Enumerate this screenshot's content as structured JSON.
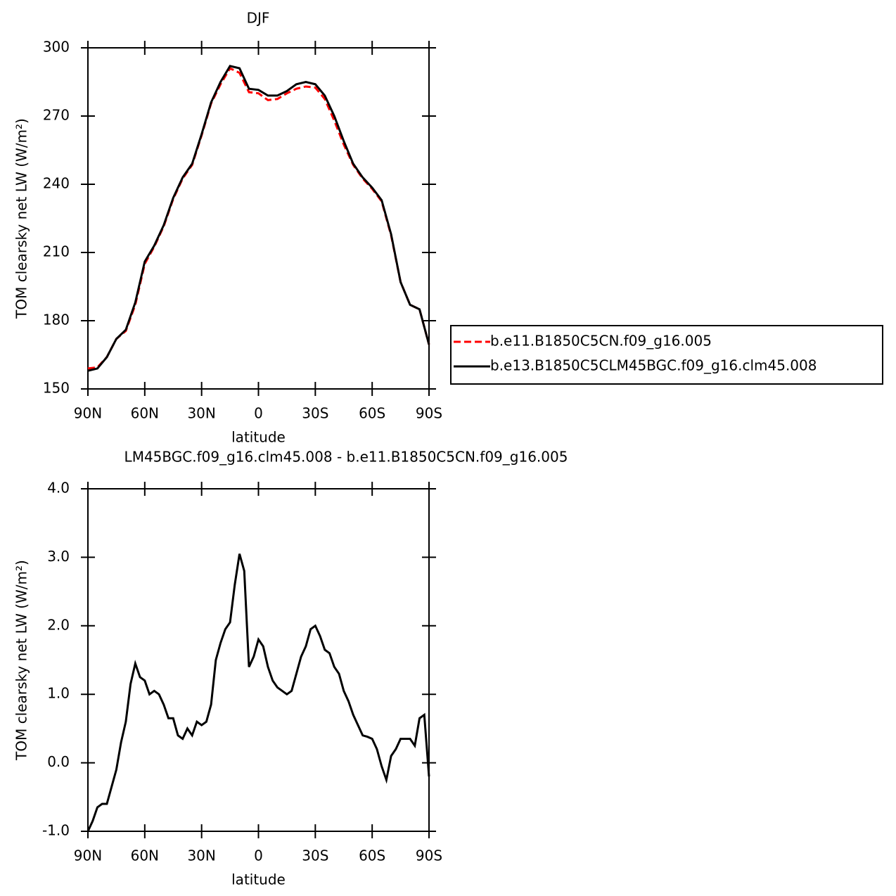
{
  "chart_data": [
    {
      "type": "line",
      "title": "DJF",
      "xlabel": "latitude",
      "ylabel": "TOM clearsky net LW (W/m²)",
      "x": [
        90,
        85,
        80,
        75,
        70,
        65,
        60,
        55,
        50,
        45,
        40,
        35,
        30,
        25,
        20,
        15,
        10,
        5,
        0,
        -5,
        -10,
        -15,
        -20,
        -25,
        -30,
        -35,
        -40,
        -45,
        -50,
        -55,
        -60,
        -65,
        -70,
        -75,
        -80,
        -85,
        -90
      ],
      "series": [
        {
          "name": "b.e11.B1850C5CN.f09_g16.005",
          "color": "#ff0000",
          "line_style": "dashed",
          "values": [
            159,
            159.5,
            164,
            172,
            175.5,
            187,
            205,
            212.5,
            221.5,
            233.5,
            242.5,
            248.5,
            261.5,
            275.5,
            284,
            291,
            289,
            280.5,
            280,
            277,
            277.5,
            280,
            282,
            283,
            282.5,
            277.5,
            268,
            257.5,
            248.5,
            242.5,
            238,
            232.5,
            217.5,
            197,
            187,
            185,
            169.5
          ]
        },
        {
          "name": "b.e13.B1850C5CLM45BGC.f09_g16.clm45.008",
          "color": "#000000",
          "line_style": "solid",
          "values": [
            158,
            159,
            164,
            172,
            176,
            188,
            206,
            213,
            222,
            234,
            243,
            249,
            262,
            276,
            285,
            292,
            291,
            282,
            281.5,
            279,
            279,
            281,
            284,
            285,
            284,
            279,
            270,
            259,
            249,
            243,
            238.5,
            233,
            218,
            197,
            187,
            185,
            169.5
          ]
        }
      ],
      "xlim": [
        90,
        -90
      ],
      "xticks": [
        {
          "value": 90,
          "label": "90N"
        },
        {
          "value": 60,
          "label": "60N"
        },
        {
          "value": 30,
          "label": "30N"
        },
        0,
        {
          "value": -30,
          "label": "30S"
        },
        {
          "value": -60,
          "label": "60S"
        },
        {
          "value": -90,
          "label": "90S"
        }
      ],
      "ylim": [
        150,
        300
      ],
      "yticks": [
        150,
        180,
        210,
        240,
        270,
        300
      ],
      "legend": "outside right"
    },
    {
      "type": "line",
      "title": "LM45BGC.f09_g16.clm45.008 - b.e11.B1850C5CN.f09_g16.005",
      "xlabel": "latitude",
      "ylabel": "TOM clearsky net LW (W/m²)",
      "x": [
        90,
        87.5,
        85,
        82.5,
        80,
        77.5,
        75,
        72.5,
        70,
        67.5,
        65,
        62.5,
        60,
        57.5,
        55,
        52.5,
        50,
        47.5,
        45,
        42.5,
        40,
        37.5,
        35,
        32.5,
        30,
        27.5,
        25,
        22.5,
        20,
        17.5,
        15,
        12.5,
        10,
        7.5,
        5,
        2.5,
        0,
        -2.5,
        -5,
        -7.5,
        -10,
        -12.5,
        -15,
        -17.5,
        -20,
        -22.5,
        -25,
        -27.5,
        -30,
        -32.5,
        -35,
        -37.5,
        -40,
        -42.5,
        -45,
        -47.5,
        -50,
        -52.5,
        -55,
        -57.5,
        -60,
        -62.5,
        -65,
        -67.5,
        -70,
        -72.5,
        -75,
        -77.5,
        -80,
        -82.5,
        -85,
        -87.5,
        -90
      ],
      "color": "#000000",
      "values": [
        -1.0,
        -0.85,
        -0.65,
        -0.6,
        -0.6,
        -0.35,
        -0.1,
        0.3,
        0.6,
        1.15,
        1.45,
        1.25,
        1.2,
        1.0,
        1.05,
        1.0,
        0.85,
        0.65,
        0.65,
        0.4,
        0.35,
        0.5,
        0.4,
        0.6,
        0.55,
        0.6,
        0.85,
        1.5,
        1.75,
        1.95,
        2.05,
        2.6,
        3.05,
        2.8,
        1.4,
        1.55,
        1.8,
        1.7,
        1.4,
        1.2,
        1.1,
        1.05,
        1.0,
        1.05,
        1.3,
        1.55,
        1.7,
        1.95,
        2.0,
        1.85,
        1.65,
        1.6,
        1.4,
        1.3,
        1.05,
        0.9,
        0.7,
        0.55,
        0.4,
        0.38,
        0.35,
        0.2,
        -0.05,
        -0.25,
        0.1,
        0.2,
        0.35,
        0.35,
        0.35,
        0.25,
        0.65,
        0.7,
        -0.2
      ],
      "xlim": [
        90,
        -90
      ],
      "xticks": [
        {
          "value": 90,
          "label": "90N"
        },
        {
          "value": 60,
          "label": "60N"
        },
        {
          "value": 30,
          "label": "30N"
        },
        0,
        {
          "value": -30,
          "label": "30S"
        },
        {
          "value": -60,
          "label": "60S"
        },
        {
          "value": -90,
          "label": "90S"
        }
      ],
      "ylim": [
        -1,
        4
      ],
      "yticks": [
        {
          "value": -1,
          "label": "-1.0"
        },
        {
          "value": 0,
          "label": "0.0"
        },
        {
          "value": 1,
          "label": "1.0"
        },
        {
          "value": 2,
          "label": "2.0"
        },
        {
          "value": 3,
          "label": "3.0"
        },
        {
          "value": 4,
          "label": "4.0"
        }
      ]
    }
  ]
}
